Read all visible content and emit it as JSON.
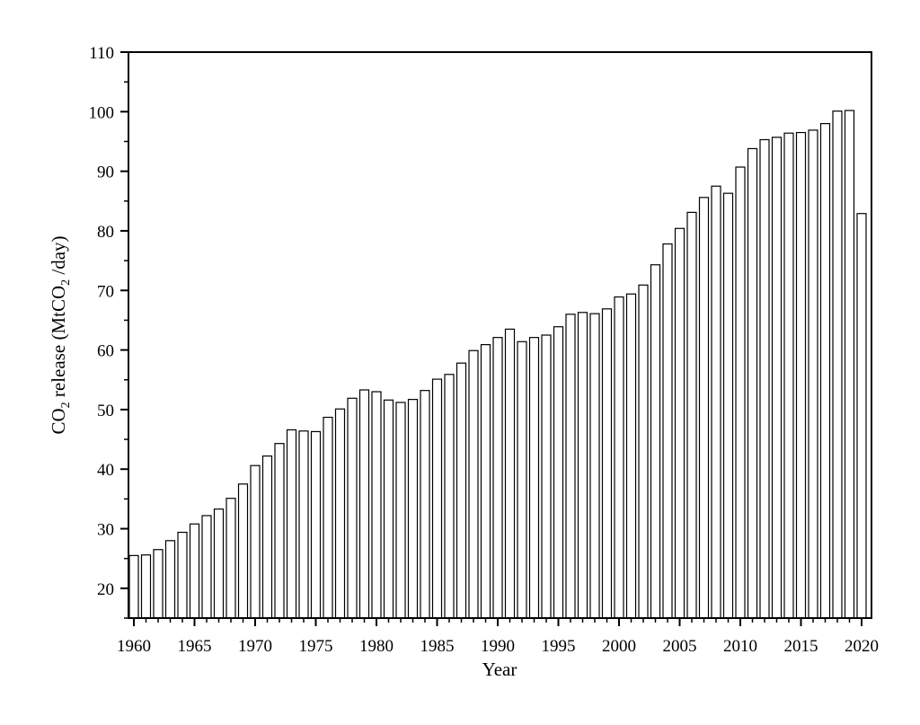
{
  "chart_data": {
    "type": "bar",
    "title": "",
    "xlabel": "Year",
    "ylabel": {
      "prefix": "CO",
      "sub1": "2",
      "middle": " release (MtCO",
      "sub2": "2",
      "suffix": " /day)"
    },
    "ylim": [
      15,
      110
    ],
    "yticks": [
      20,
      30,
      40,
      50,
      60,
      70,
      80,
      90,
      100,
      110
    ],
    "xticks": [
      1960,
      1965,
      1970,
      1975,
      1980,
      1985,
      1990,
      1995,
      2000,
      2005,
      2010,
      2015,
      2020
    ],
    "x": [
      1960,
      1961,
      1962,
      1963,
      1964,
      1965,
      1966,
      1967,
      1968,
      1969,
      1970,
      1971,
      1972,
      1973,
      1974,
      1975,
      1976,
      1977,
      1978,
      1979,
      1980,
      1981,
      1982,
      1983,
      1984,
      1985,
      1986,
      1987,
      1988,
      1989,
      1990,
      1991,
      1992,
      1993,
      1994,
      1995,
      1996,
      1997,
      1998,
      1999,
      2000,
      2001,
      2002,
      2003,
      2004,
      2005,
      2006,
      2007,
      2008,
      2009,
      2010,
      2011,
      2012,
      2013,
      2014,
      2015,
      2016,
      2017,
      2018,
      2019,
      2020
    ],
    "values": [
      25.5,
      25.6,
      26.5,
      28.0,
      29.4,
      30.8,
      32.2,
      33.3,
      35.1,
      37.5,
      40.6,
      42.2,
      44.3,
      46.6,
      46.4,
      46.3,
      48.7,
      50.1,
      51.9,
      53.3,
      53.0,
      51.6,
      51.2,
      51.7,
      53.2,
      55.1,
      55.9,
      57.8,
      59.9,
      60.9,
      62.1,
      63.5,
      61.4,
      62.1,
      62.5,
      63.9,
      66.0,
      66.3,
      66.1,
      66.9,
      68.9,
      69.4,
      70.9,
      74.3,
      77.8,
      80.4,
      83.1,
      85.6,
      87.5,
      86.3,
      90.7,
      93.8,
      95.3,
      95.7,
      96.4,
      96.5,
      96.9,
      98.0,
      100.1,
      100.2,
      82.9
    ],
    "bar_fill": "#ffffff",
    "bar_stroke": "#000000",
    "grid": false,
    "legend": "none"
  }
}
